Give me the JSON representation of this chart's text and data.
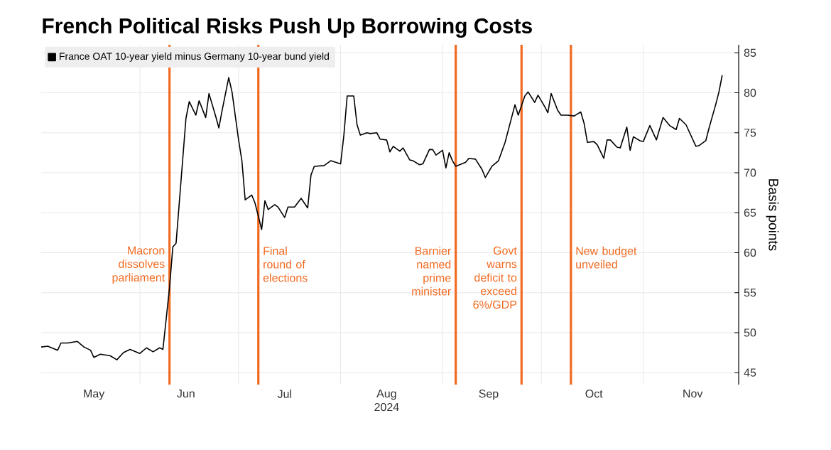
{
  "chart_data": {
    "type": "line",
    "title": "French Political Risks Push Up Borrowing Costs",
    "ylabel": "Basis points",
    "x": [
      "2024-05-02",
      "2024-05-04",
      "2024-05-07",
      "2024-05-08",
      "2024-05-10",
      "2024-05-13",
      "2024-05-15",
      "2024-05-17",
      "2024-05-18",
      "2024-05-20",
      "2024-05-23",
      "2024-05-25",
      "2024-05-27",
      "2024-05-29",
      "2024-06-01",
      "2024-06-03",
      "2024-06-05",
      "2024-06-07",
      "2024-06-08",
      "2024-06-10",
      "2024-06-11",
      "2024-06-12",
      "2024-06-15",
      "2024-06-16",
      "2024-06-18",
      "2024-06-19",
      "2024-06-21",
      "2024-06-22",
      "2024-06-24",
      "2024-06-25",
      "2024-06-26",
      "2024-06-28",
      "2024-06-29",
      "2024-07-01",
      "2024-07-02",
      "2024-07-03",
      "2024-07-05",
      "2024-07-06",
      "2024-07-08",
      "2024-07-09",
      "2024-07-10",
      "2024-07-12",
      "2024-07-13",
      "2024-07-15",
      "2024-07-16",
      "2024-07-18",
      "2024-07-20",
      "2024-07-22",
      "2024-07-23",
      "2024-07-24",
      "2024-07-27",
      "2024-07-29",
      "2024-08-01",
      "2024-08-02",
      "2024-08-03",
      "2024-08-05",
      "2024-08-06",
      "2024-08-07",
      "2024-08-09",
      "2024-08-10",
      "2024-08-12",
      "2024-08-13",
      "2024-08-15",
      "2024-08-16",
      "2024-08-17",
      "2024-08-19",
      "2024-08-20",
      "2024-08-22",
      "2024-08-23",
      "2024-08-25",
      "2024-08-26",
      "2024-08-28",
      "2024-08-29",
      "2024-08-30",
      "2024-09-01",
      "2024-09-02",
      "2024-09-03",
      "2024-09-04",
      "2024-09-05",
      "2024-09-08",
      "2024-09-09",
      "2024-09-11",
      "2024-09-13",
      "2024-09-14",
      "2024-09-16",
      "2024-09-18",
      "2024-09-20",
      "2024-09-23",
      "2024-09-24",
      "2024-09-26",
      "2024-09-27",
      "2024-09-29",
      "2024-09-30",
      "2024-10-02",
      "2024-10-03",
      "2024-10-04",
      "2024-10-06",
      "2024-10-07",
      "2024-10-09",
      "2024-10-11",
      "2024-10-13",
      "2024-10-14",
      "2024-10-15",
      "2024-10-17",
      "2024-10-18",
      "2024-10-20",
      "2024-10-21",
      "2024-10-22",
      "2024-10-24",
      "2024-10-25",
      "2024-10-27",
      "2024-10-28",
      "2024-10-29",
      "2024-10-31",
      "2024-11-01",
      "2024-11-03",
      "2024-11-05",
      "2024-11-07",
      "2024-11-09",
      "2024-11-11",
      "2024-11-12",
      "2024-11-14",
      "2024-11-17",
      "2024-11-18",
      "2024-11-20",
      "2024-11-21",
      "2024-11-23",
      "2024-11-24",
      "2024-11-25"
    ],
    "series": [
      {
        "name": "France OAT 10-year yield minus Germany 10-year bund yield",
        "color": "#000000",
        "values": [
          48.2,
          48.3,
          47.8,
          48.7,
          48.7,
          48.9,
          48.2,
          47.8,
          46.9,
          47.3,
          47.1,
          46.6,
          47.5,
          47.9,
          47.4,
          48.1,
          47.6,
          48.1,
          47.9,
          55.6,
          60.7,
          61.2,
          76.8,
          78.9,
          77.2,
          79.0,
          76.9,
          79.9,
          77.1,
          75.6,
          77.8,
          81.9,
          80.1,
          74.1,
          71.5,
          66.6,
          67.2,
          66.2,
          62.9,
          66.5,
          65.4,
          66.0,
          65.7,
          64.4,
          65.7,
          65.7,
          66.8,
          65.6,
          69.7,
          70.8,
          70.9,
          71.5,
          71.1,
          74.7,
          79.6,
          79.6,
          76.0,
          74.7,
          75.0,
          74.9,
          75.0,
          74.2,
          74.1,
          72.6,
          73.3,
          72.7,
          73.1,
          71.6,
          71.5,
          71.0,
          71.1,
          72.9,
          72.9,
          72.2,
          72.8,
          70.6,
          72.5,
          71.5,
          70.8,
          71.3,
          71.8,
          71.7,
          70.4,
          69.4,
          70.8,
          71.5,
          73.8,
          78.5,
          77.2,
          79.6,
          80.1,
          78.8,
          79.7,
          78.3,
          77.5,
          79.9,
          77.8,
          77.2,
          77.2,
          77.1,
          77.6,
          76.2,
          73.8,
          73.9,
          73.5,
          71.8,
          74.1,
          74.1,
          73.2,
          73.1,
          75.7,
          72.8,
          74.5,
          74.0,
          73.9,
          75.9,
          74.1,
          76.9,
          75.9,
          75.4,
          76.8,
          76.0,
          73.3,
          73.4,
          74.0,
          75.6,
          78.5,
          80.1,
          82.2
        ]
      }
    ],
    "xlim": [
      "2024-05-02",
      "2024-11-30"
    ],
    "xticks": [
      {
        "value": "2024-06-01",
        "label": null
      },
      {
        "value": "2024-07-01",
        "label": null
      },
      {
        "value": "2024-08-01",
        "label": null
      },
      {
        "value": "2024-09-01",
        "label": null
      },
      {
        "value": "2024-10-01",
        "label": null
      },
      {
        "value": "2024-11-01",
        "label": null
      },
      {
        "value": "2024-05-18",
        "label": "May"
      },
      {
        "value": "2024-06-15",
        "label": "Jun"
      },
      {
        "value": "2024-07-15",
        "label": "Jul"
      },
      {
        "value": "2024-08-15",
        "label": "Aug 2024"
      },
      {
        "value": "2024-09-15",
        "label": "Sep"
      },
      {
        "value": "2024-10-17",
        "label": "Oct"
      },
      {
        "value": "2024-11-16",
        "label": "Nov"
      }
    ],
    "ylim": [
      43.5,
      86
    ],
    "yticks": [
      45,
      50,
      55,
      60,
      65,
      70,
      75,
      80,
      85
    ],
    "ref_lines": [
      {
        "axis": "x",
        "value": "2024-06-10",
        "label": "Macron dissolves parliament",
        "color": "#f26a21"
      },
      {
        "axis": "x",
        "value": "2024-07-07",
        "label": "Final round of elections",
        "color": "#f26a21"
      },
      {
        "axis": "x",
        "value": "2024-09-05",
        "label": "Barnier named prime minister",
        "color": "#f26a21"
      },
      {
        "axis": "x",
        "value": "2024-09-25",
        "label": "Govt warns deficit to exceed 6%/GDP",
        "color": "#f26a21"
      },
      {
        "axis": "x",
        "value": "2024-10-10",
        "label": "New budget unveiled",
        "color": "#f26a21"
      }
    ],
    "grid": true,
    "legend": "top left"
  }
}
